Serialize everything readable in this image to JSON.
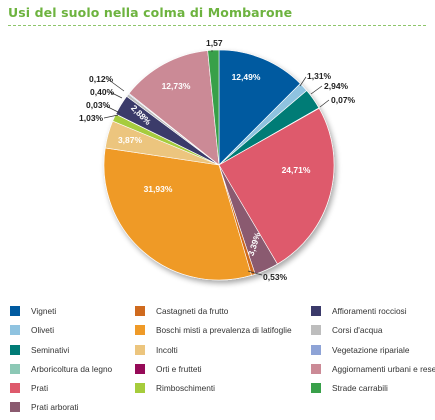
{
  "title": "Usi del suolo nella colma di Mombarone",
  "chart_data": {
    "type": "pie",
    "title": "Usi del suolo nella colma di Mombarone",
    "legend_position": "bottom",
    "slices": [
      {
        "label": "Vigneti",
        "value": 12.49,
        "display": "12,49%",
        "color": "#005aa0"
      },
      {
        "label": "Oliveti",
        "value": 1.31,
        "display": "1,31%",
        "color": "#8fc3e0"
      },
      {
        "label": "Seminativi",
        "value": 2.94,
        "display": "2,94%",
        "color": "#007b76"
      },
      {
        "label": "Arboricoltura da legno",
        "value": 0.07,
        "display": "0,07%",
        "color": "#8cc8b5"
      },
      {
        "label": "Prati",
        "value": 24.71,
        "display": "24,71%",
        "color": "#de5a6c"
      },
      {
        "label": "Prati arborati",
        "value": 3.39,
        "display": "3,39%",
        "color": "#8a5a6f"
      },
      {
        "label": "Castagneti da frutto",
        "value": 0.53,
        "display": "0,53%",
        "color": "#cf6a1e"
      },
      {
        "label": "Boschi misti a prevalenza di latifoglie",
        "value": 31.93,
        "display": "31,93%",
        "color": "#ef9a28"
      },
      {
        "label": "Incolti",
        "value": 3.87,
        "display": "3,87%",
        "color": "#ecc57e"
      },
      {
        "label": "Rimboschimenti",
        "value": 1.03,
        "display": "1,03%",
        "color": "#a6cc3c"
      },
      {
        "label": "Orti e frutteti",
        "value": 0.03,
        "display": "0,03%",
        "color": "#960a58"
      },
      {
        "label": "Affioramenti rocciosi",
        "value": 2.88,
        "display": "2,88%",
        "color": "#3b3a6a"
      },
      {
        "label": "Corsi d'acqua",
        "value": 0.4,
        "display": "0,40%",
        "color": "#bdbdbd"
      },
      {
        "label": "Vegetazione ripariale",
        "value": 0.12,
        "display": "0,12%",
        "color": "#8ea3d6"
      },
      {
        "label": "Aggiornamenti urbani e reseti",
        "value": 12.73,
        "display": "12,73%",
        "color": "#cb8a96"
      },
      {
        "label": "Strade carrabili",
        "value": 1.57,
        "display": "1,57",
        "color": "#39a04a"
      }
    ]
  },
  "legend": [
    {
      "label": "Vigneti",
      "color": "#005aa0"
    },
    {
      "label": "Oliveti",
      "color": "#8fc3e0"
    },
    {
      "label": "Seminativi",
      "color": "#007b76"
    },
    {
      "label": "Arboricoltura da legno",
      "color": "#8cc8b5"
    },
    {
      "label": "Prati",
      "color": "#de5a6c"
    },
    {
      "label": "Prati arborati",
      "color": "#8a5a6f"
    },
    {
      "label": "Castagneti da frutto",
      "color": "#cf6a1e"
    },
    {
      "label": "Boschi misti a prevalenza di latifoglie",
      "color": "#ef9a28"
    },
    {
      "label": "Incolti",
      "color": "#ecc57e"
    },
    {
      "label": "Orti e frutteti",
      "color": "#960a58"
    },
    {
      "label": "Rimboschimenti",
      "color": "#a6cc3c"
    },
    {
      "label": "Affioramenti rocciosi",
      "color": "#3b3a6a"
    },
    {
      "label": "Corsi d'acqua",
      "color": "#bdbdbd"
    },
    {
      "label": "Vegetazione ripariale",
      "color": "#8ea3d6"
    },
    {
      "label": "Aggiornamenti urbani e reseti",
      "color": "#cb8a96"
    },
    {
      "label": "Strade carrabili",
      "color": "#39a04a"
    }
  ]
}
